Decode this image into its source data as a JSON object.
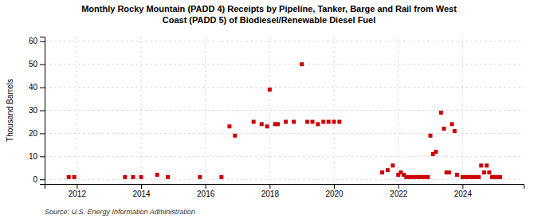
{
  "chart_data": {
    "type": "scatter",
    "title": "Monthly Rocky Mountain (PADD 4) Receipts by Pipeline, Tanker, Barge and Rail from West\nCoast (PADD 5) of Biodiesel/Renewable Diesel Fuel",
    "ylabel": "Thousand Barrels",
    "annotations": [
      "Source: U.S. Energy Information Administration"
    ],
    "color": "#cc0000",
    "marker": "square",
    "grid": true,
    "xlim": [
      2011.0,
      2025.9
    ],
    "ylim": [
      -2,
      62
    ],
    "xticks": [
      2012,
      2014,
      2016,
      2018,
      2020,
      2022,
      2024
    ],
    "yticks": [
      0,
      10,
      20,
      30,
      40,
      50,
      60
    ],
    "x": [
      2011.75,
      2011.92,
      2013.5,
      2013.75,
      2014.0,
      2014.5,
      2014.83,
      2015.83,
      2016.5,
      2016.75,
      2016.92,
      2017.5,
      2017.75,
      2017.92,
      2018.0,
      2018.17,
      2018.25,
      2018.5,
      2018.75,
      2019.0,
      2019.17,
      2019.33,
      2019.5,
      2019.67,
      2019.83,
      2020.0,
      2020.17,
      2021.5,
      2021.67,
      2021.83,
      2022.0,
      2022.08,
      2022.17,
      2022.25,
      2022.33,
      2022.42,
      2022.5,
      2022.58,
      2022.67,
      2022.75,
      2022.83,
      2022.92,
      2023.0,
      2023.08,
      2023.17,
      2023.33,
      2023.42,
      2023.5,
      2023.58,
      2023.67,
      2023.75,
      2023.83,
      2024.0,
      2024.08,
      2024.17,
      2024.25,
      2024.33,
      2024.42,
      2024.5,
      2024.58,
      2024.67,
      2024.75,
      2024.83,
      2024.92,
      2025.0,
      2025.08,
      2025.17
    ],
    "values": [
      1,
      1,
      1,
      1,
      1,
      2,
      1,
      1,
      1,
      23,
      19,
      25,
      24,
      23,
      39,
      24,
      24,
      25,
      25,
      50,
      25,
      25,
      24,
      25,
      25,
      25,
      25,
      3,
      4,
      6,
      2,
      3,
      2,
      1,
      1,
      1,
      1,
      1,
      1,
      1,
      1,
      1,
      19,
      11,
      12,
      29,
      22,
      3,
      3,
      24,
      21,
      2,
      1,
      1,
      1,
      1,
      1,
      1,
      1,
      6,
      3,
      6,
      3,
      1,
      1,
      1,
      1
    ]
  }
}
